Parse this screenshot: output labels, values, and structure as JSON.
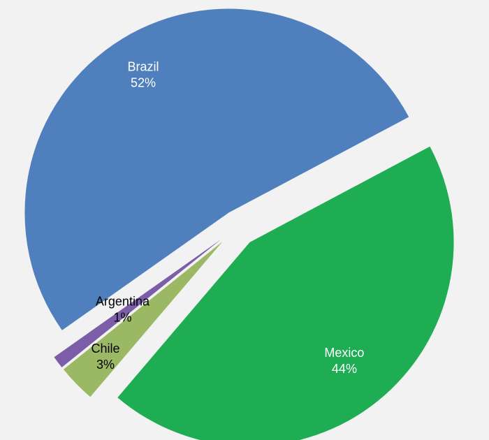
{
  "chart_data": {
    "type": "pie",
    "exploded": true,
    "slices": [
      {
        "label": "Mexico",
        "value": 44,
        "value_label": "44%",
        "color": "#1fad54",
        "label_color": "#ffffff"
      },
      {
        "label": "Chile",
        "value": 3,
        "value_label": "3%",
        "color": "#9bb864",
        "label_color": "#000000"
      },
      {
        "label": "Argentina",
        "value": 1,
        "value_label": "1%",
        "color": "#7b5ea7",
        "label_color": "#000000"
      },
      {
        "label": "Brazil",
        "value": 52,
        "value_label": "52%",
        "color": "#4f80bd",
        "label_color": "#ffffff"
      }
    ]
  }
}
